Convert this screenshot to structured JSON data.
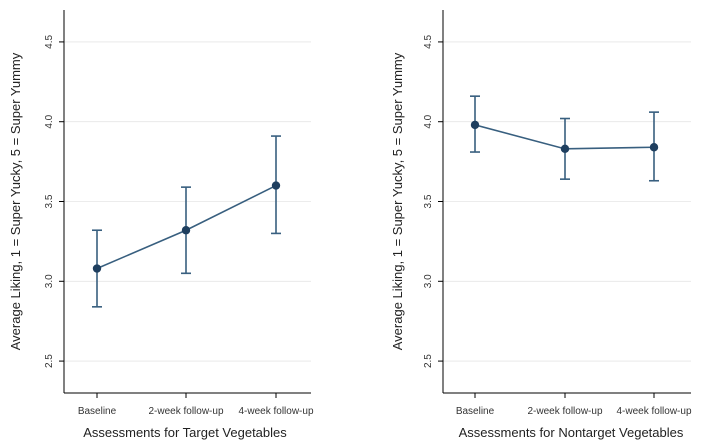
{
  "chart_data": [
    {
      "type": "line",
      "title": "",
      "xlabel": "Assessments for Target Vegetables",
      "ylabel": "Average Liking, 1 = Super Yucky, 5 = Super Yummy",
      "categories": [
        "Baseline",
        "2-week follow-up",
        "4-week follow-up"
      ],
      "ylim": [
        2.3,
        4.7
      ],
      "yticks": [
        "2.5",
        "3.0",
        "3.5",
        "4.0",
        "4.5"
      ],
      "grid": "horizontal",
      "color": "#385f7f",
      "series": [
        {
          "values": [
            3.08,
            3.32,
            3.6
          ],
          "lower": [
            2.84,
            3.05,
            3.3
          ],
          "upper": [
            3.32,
            3.59,
            3.91
          ]
        }
      ]
    },
    {
      "type": "line",
      "title": "",
      "xlabel": "Assessments for Nontarget Vegetables",
      "ylabel": "Average Liking, 1 = Super Yucky, 5 = Super Yummy",
      "categories": [
        "Baseline",
        "2-week follow-up",
        "4-week follow-up"
      ],
      "ylim": [
        2.3,
        4.7
      ],
      "yticks": [
        "2.5",
        "3.0",
        "3.5",
        "4.0",
        "4.5"
      ],
      "grid": "horizontal",
      "color": "#385f7f",
      "series": [
        {
          "values": [
            3.98,
            3.83,
            3.84
          ],
          "lower": [
            3.81,
            3.64,
            3.63
          ],
          "upper": [
            4.16,
            4.02,
            4.06
          ]
        }
      ]
    }
  ]
}
